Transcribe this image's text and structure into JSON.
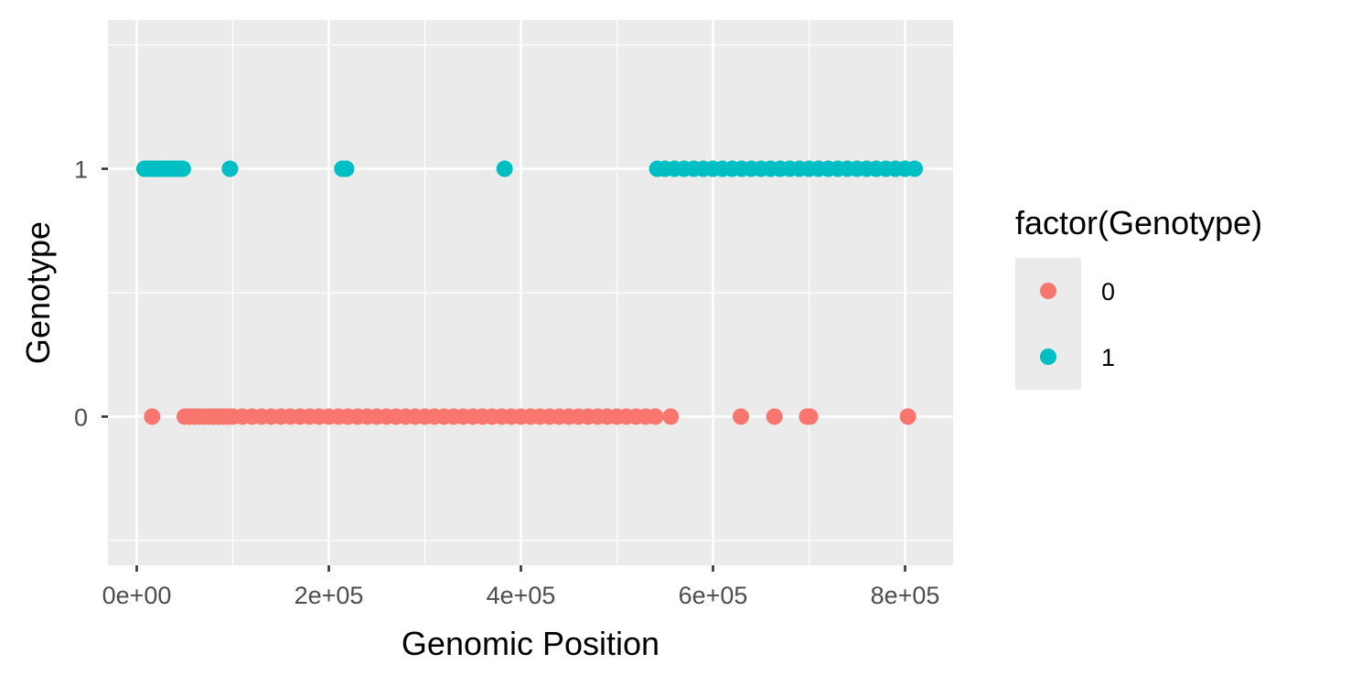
{
  "chart_data": {
    "type": "scatter",
    "title": "",
    "xlabel": "Genomic Position",
    "ylabel": "Genotype",
    "xlim": [
      -30000,
      850000
    ],
    "ylim": [
      -0.6,
      1.6
    ],
    "x_ticks": [
      0,
      200000,
      400000,
      600000,
      800000
    ],
    "x_tick_labels": [
      "0e+00",
      "2e+05",
      "4e+05",
      "6e+05",
      "8e+05"
    ],
    "y_ticks": [
      0,
      1
    ],
    "y_tick_labels": [
      "0",
      "1"
    ],
    "grid": true,
    "panel_background": "#ebebeb",
    "legend": {
      "title": "factor(Genotype)",
      "position": "right",
      "entries": [
        {
          "label": "0",
          "color": "#f8766d"
        },
        {
          "label": "1",
          "color": "#00bfc4"
        }
      ]
    },
    "series": [
      {
        "name": "0",
        "color": "#f8766d",
        "y": 0,
        "x": [
          16000,
          50000,
          55000,
          60000,
          65000,
          70000,
          75000,
          80000,
          85000,
          90000,
          95000,
          100000,
          110000,
          120000,
          130000,
          140000,
          150000,
          160000,
          170000,
          180000,
          190000,
          200000,
          210000,
          220000,
          230000,
          240000,
          250000,
          260000,
          270000,
          280000,
          290000,
          300000,
          310000,
          320000,
          330000,
          340000,
          350000,
          360000,
          370000,
          380000,
          390000,
          400000,
          410000,
          420000,
          430000,
          440000,
          450000,
          460000,
          470000,
          480000,
          490000,
          500000,
          510000,
          520000,
          530000,
          540000,
          556000,
          629000,
          664000,
          698000,
          701000,
          803000
        ]
      },
      {
        "name": "1",
        "color": "#00bfc4",
        "y": 1,
        "x": [
          8000,
          12000,
          16000,
          20000,
          24000,
          28000,
          32000,
          36000,
          40000,
          44000,
          48000,
          97000,
          214000,
          218000,
          383000,
          542000,
          550000,
          560000,
          570000,
          580000,
          590000,
          600000,
          610000,
          620000,
          630000,
          640000,
          650000,
          660000,
          670000,
          680000,
          690000,
          700000,
          710000,
          720000,
          730000,
          740000,
          750000,
          760000,
          770000,
          780000,
          790000,
          800000,
          810000
        ]
      }
    ]
  }
}
